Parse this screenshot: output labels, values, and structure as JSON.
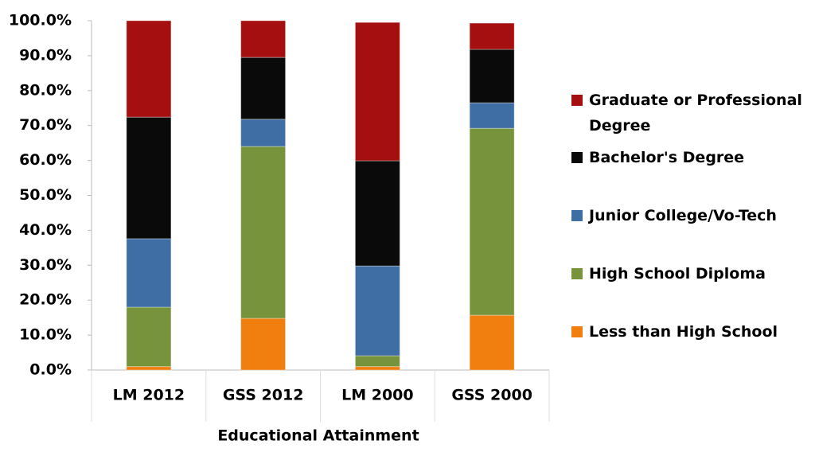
{
  "chart_data": {
    "type": "stacked_bar",
    "x_label": "Educational Attainment",
    "categories": [
      "LM 2012",
      "GSS 2012",
      "LM 2000",
      "GSS 2000"
    ],
    "series": [
      {
        "name": "Less than High School",
        "color": "#f07f0f",
        "values": [
          1.0,
          14.8,
          1.0,
          15.7
        ]
      },
      {
        "name": "High School Diploma",
        "color": "#77933c",
        "values": [
          17.0,
          49.2,
          3.1,
          53.5
        ]
      },
      {
        "name": "Junior College/Vo-Tech",
        "color": "#3f6ea5",
        "values": [
          19.6,
          7.8,
          25.7,
          7.3
        ]
      },
      {
        "name": "Bachelor's Degree",
        "color": "#0a0a0a",
        "values": [
          34.8,
          17.7,
          30.1,
          15.3
        ]
      },
      {
        "name": "Graduate or Professional Degree",
        "color": "#a50f0f",
        "values": [
          27.6,
          10.5,
          39.6,
          7.5
        ]
      }
    ],
    "ylim": [
      0,
      100
    ],
    "yticks": [
      {
        "value": 0,
        "label": "0.0%"
      },
      {
        "value": 10,
        "label": "10.0%"
      },
      {
        "value": 20,
        "label": "20.0%"
      },
      {
        "value": 30,
        "label": "30.0%"
      },
      {
        "value": 40,
        "label": "40.0%"
      },
      {
        "value": 50,
        "label": "50.0%"
      },
      {
        "value": 60,
        "label": "60.0%"
      },
      {
        "value": 70,
        "label": "70.0%"
      },
      {
        "value": 80,
        "label": "80.0%"
      },
      {
        "value": 90,
        "label": "90.0%"
      },
      {
        "value": 100,
        "label": "100.0%"
      }
    ],
    "legend": "right"
  }
}
